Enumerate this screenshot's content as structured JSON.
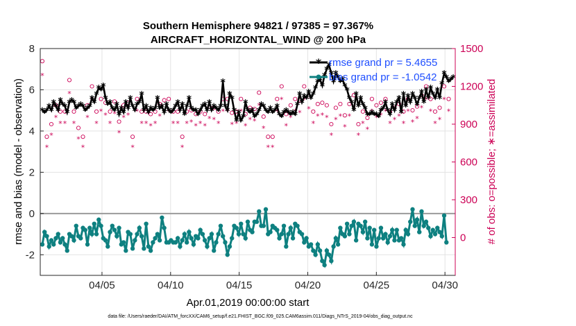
{
  "chart_data": {
    "type": "line",
    "title_line1": "Southern Hemisphere 94821 / 97385 = 97.367%",
    "title_line2": "AIRCRAFT_HORIZONTAL_WIND @ 200 hPa",
    "ylabel_left": "rmse and bias (model - observation)",
    "ylabel_right": "# of obs: o=possible; ∗=assimilated",
    "xlabel": "Apr.01,2019 00:00:00 start",
    "footer": "data file: /Users/raeder/DAI/ATM_forcXX/CAM6_setup/f.e21.FHIST_BGC.f09_025.CAM6assim.011/Diags_NTrS_2019-04/obs_diag_output.nc",
    "xlim": [
      0.5,
      30.75
    ],
    "ylim_left": [
      -3,
      8
    ],
    "ylim_right": [
      -300,
      1500
    ],
    "yticks_left": [
      -2,
      0,
      2,
      4,
      6,
      8
    ],
    "yticks_right": [
      0,
      300,
      600,
      900,
      1200,
      1500
    ],
    "xticks": [
      {
        "day": 5,
        "label": "04/05"
      },
      {
        "day": 10,
        "label": "04/10"
      },
      {
        "day": 15,
        "label": "04/15"
      },
      {
        "day": 20,
        "label": "04/20"
      },
      {
        "day": 25,
        "label": "04/25"
      },
      {
        "day": 30,
        "label": "04/30"
      }
    ],
    "grid": true,
    "legend_position": "top-right",
    "colors": {
      "rmse": "#000000",
      "bias": "#0e8080",
      "obs": "#cc0055",
      "zero_line": "#9a9a9a",
      "legend_text": "#1f4fff"
    },
    "series": [
      {
        "name": "rmse grand pr = 5.4655",
        "axis": "left",
        "values": [
          5.0,
          4.9,
          5.0,
          5.2,
          5.0,
          5.4,
          5.2,
          5.0,
          5.5,
          5.3,
          5.2,
          4.9,
          5.4,
          5.5,
          5.4,
          5.1,
          5.2,
          5.3,
          5.2,
          5.0,
          5.1,
          5.2,
          5.6,
          5.4,
          5.8,
          6.1,
          6.0,
          6.2,
          5.6,
          5.3,
          5.4,
          5.1,
          5.0,
          5.3,
          4.8,
          5.1,
          4.9,
          5.4,
          5.1,
          5.6,
          5.2,
          5.0,
          5.3,
          5.4,
          5.8,
          5.0,
          5.2,
          4.9,
          5.1,
          5.0,
          5.1,
          5.6,
          5.1,
          5.2,
          4.9,
          5.3,
          5.0,
          4.9,
          5.0,
          5.2,
          5.4,
          5.0,
          5.3,
          4.8,
          5.2,
          5.6,
          5.1,
          5.0,
          5.0,
          4.8,
          5.0,
          5.2,
          5.3,
          5.0,
          5.4,
          5.0,
          5.2,
          5.1,
          5.0,
          5.2,
          6.4,
          5.2,
          5.0,
          5.8,
          5.6,
          5.0,
          4.5,
          4.9,
          4.5,
          4.7,
          5.4,
          5.0,
          4.9,
          5.0,
          4.7,
          4.8,
          5.0,
          5.3,
          5.2,
          5.0,
          4.9,
          5.1,
          4.9,
          5.0,
          5.2,
          4.8,
          4.7,
          4.9,
          5.0,
          4.9,
          4.8,
          4.9,
          4.8,
          5.3,
          5.8,
          5.4,
          5.7,
          5.6,
          5.9,
          5.6,
          5.8,
          6.1,
          6.4,
          6.5,
          6.2,
          6.7,
          7.0,
          7.2,
          6.8,
          6.4,
          6.8,
          6.6,
          6.4,
          6.5,
          6.2,
          6.0,
          5.6,
          5.4,
          5.0,
          5.8,
          5.2,
          5.6,
          5.3,
          5.1,
          4.8,
          4.8,
          4.9,
          4.8,
          4.8,
          4.7,
          5.0,
          5.1,
          5.4,
          5.0,
          4.8,
          5.3,
          5.0,
          5.4,
          5.6,
          4.9,
          5.8,
          5.2,
          5.7,
          5.4,
          5.8,
          5.6,
          5.3,
          5.6,
          5.9,
          5.4,
          6.0,
          5.6,
          6.1,
          5.8,
          5.6,
          6.0,
          5.6,
          6.3,
          6.8,
          6.6,
          6.4,
          6.5,
          6.6
        ]
      },
      {
        "name": "bias grand pr = -1.0542",
        "axis": "left",
        "values": [
          -1.5,
          -0.9,
          -1.1,
          -1.6,
          -1.3,
          -1.5,
          -1.2,
          -1.0,
          -1.4,
          -1.2,
          -1.5,
          -1.8,
          -1.0,
          -1.1,
          -1.3,
          -0.6,
          -1.1,
          -1.2,
          -0.7,
          -0.8,
          -1.5,
          -0.7,
          -1.0,
          -0.5,
          -1.0,
          -0.3,
          -0.6,
          -1.2,
          -1.3,
          -1.6,
          -0.9,
          -0.6,
          -0.8,
          -1.1,
          -0.7,
          -1.5,
          -1.4,
          -1.8,
          -0.9,
          -1.0,
          -1.7,
          -1.3,
          -1.0,
          -0.7,
          -1.1,
          -1.7,
          -0.5,
          -1.6,
          -1.8,
          -1.4,
          -1.2,
          -1.0,
          -1.3,
          -0.2,
          -0.7,
          -1.4,
          -1.4,
          -1.3,
          -1.4,
          -1.4,
          -1.2,
          -1.6,
          -1.3,
          -1.0,
          -1.4,
          -0.9,
          -1.2,
          -1.5,
          -1.1,
          -1.2,
          -0.8,
          -1.0,
          -1.3,
          -1.6,
          -1.2,
          -1.0,
          -1.8,
          -1.4,
          -1.0,
          -0.6,
          -1.1,
          -1.4,
          -2.0,
          -1.6,
          -1.2,
          -0.6,
          -0.7,
          -1.0,
          -0.5,
          -1.0,
          -1.2,
          -0.4,
          -0.8,
          -0.9,
          -0.4,
          -0.4,
          0.1,
          -0.6,
          -0.6,
          0.2,
          -1.0,
          -0.9,
          -0.6,
          -0.7,
          -0.8,
          -1.2,
          -1.0,
          -0.6,
          -1.6,
          -1.0,
          -0.7,
          -1.2,
          -0.5,
          -0.6,
          -0.9,
          -1.0,
          -1.4,
          -1.2,
          -1.6,
          -1.5,
          -1.8,
          -2.0,
          -1.5,
          -1.8,
          -2.3,
          -2.5,
          -1.8,
          -2.0,
          -2.3,
          -1.6,
          -1.2,
          -1.5,
          -0.7,
          -1.0,
          -1.1,
          -0.5,
          -1.0,
          -0.6,
          -0.4,
          -1.3,
          -0.5,
          -0.6,
          -0.9,
          -0.4,
          -1.2,
          -0.7,
          -1.5,
          -0.8,
          -1.6,
          -1.2,
          -0.7,
          -1.2,
          -1.0,
          -1.4,
          -1.1,
          -0.8,
          -1.3,
          -0.8,
          -1.3,
          -1.2,
          -1.5,
          -0.8,
          -1.0,
          -0.4,
          0.2,
          -0.6,
          -0.3,
          -0.9,
          0.1,
          -0.6,
          -0.4,
          -0.7,
          -1.1,
          -0.8,
          -1.0,
          -0.7,
          -0.9,
          -1.1,
          -0.1,
          -1.4
        ]
      }
    ],
    "obs_possible": [
      1400,
      1300,
      800,
      750,
      900,
      1100,
      1050,
      1040,
      1000,
      950,
      1000,
      1210,
      1250,
      950,
      1000,
      900,
      870,
      700,
      800,
      900,
      1050,
      1050,
      1200,
      980,
      1000,
      930,
      1100,
      1200,
      1070,
      900,
      1000,
      980,
      1080,
      1030,
      920,
      1010,
      1050,
      1020,
      1070,
      1210,
      800,
      950,
      1100,
      1000,
      1000,
      1040,
      1000,
      990,
      980,
      1010,
      1000,
      1000,
      1060,
      1040,
      1090,
      1110,
      1100,
      1030,
      1000,
      1020,
      1000,
      870,
      800,
      900,
      1000,
      1000,
      1010,
      1000,
      980,
      1000,
      1000,
      970,
      980,
      1090,
      1040,
      1040,
      1030,
      950,
      1000,
      1020,
      1100,
      1040,
      1100,
      1050,
      990,
      980,
      1000,
      950,
      1100,
      1050,
      980,
      980,
      1030,
      1000,
      1020,
      930,
      1150,
      1000,
      960,
      910,
      800,
      830,
      800,
      1080,
      1100,
      1030,
      1200,
      1130,
      980,
      1120,
      1050,
      1180,
      1100,
      1060,
      1090,
      1050,
      1200,
      1100,
      1120,
      1010,
      1000,
      1020,
      1060,
      1090,
      1070,
      1080,
      1050,
      1100,
      900,
      1080,
      1030,
      1050,
      1060,
      930,
      970,
      910,
      1060,
      1030,
      1130,
      1100,
      900,
      1000,
      1000,
      1070,
      950,
      1200,
      1100,
      1080,
      1050,
      1000,
      1070,
      1040,
      1100,
      1050,
      1000,
      1100,
      1030,
      1080,
      1060,
      1050,
      1000,
      1100,
      1100,
      1080,
      1010,
      1100,
      1040,
      1050,
      1130,
      1060,
      1200,
      1100,
      1100,
      1100,
      1000,
      1040,
      1030,
      1150,
      1200,
      1100,
      1100
    ]
  }
}
